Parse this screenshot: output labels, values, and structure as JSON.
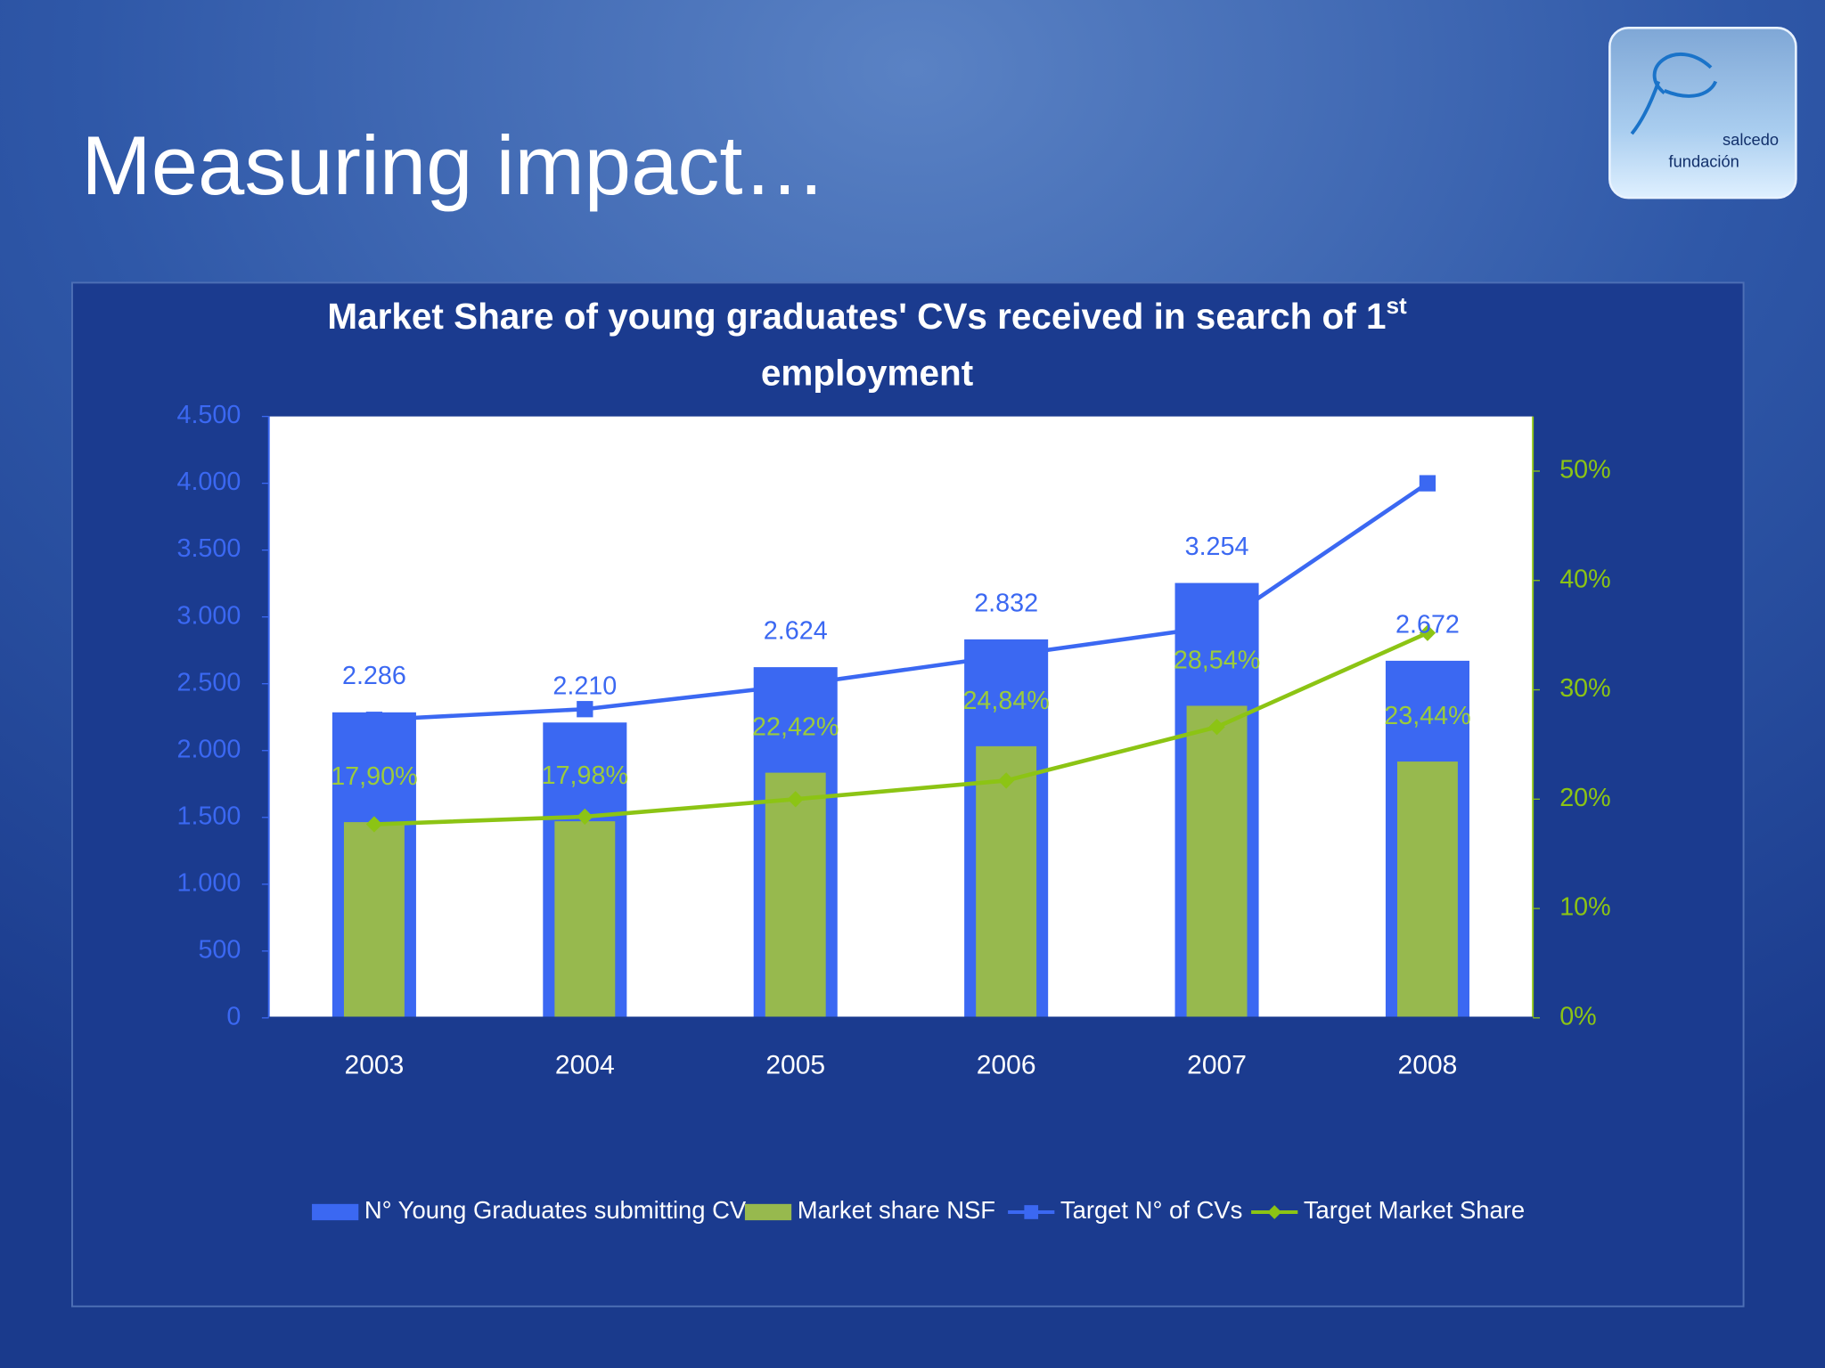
{
  "slide": {
    "title": "Measuring impact…",
    "logo_line1": "salcedo",
    "logo_line2": "fundación"
  },
  "chart_data": {
    "type": "combo",
    "title": "Market Share of young graduates' CVs received in search of 1",
    "title_superscript": "st",
    "title_line2": "employment",
    "categories": [
      "2003",
      "2004",
      "2005",
      "2006",
      "2007",
      "2008"
    ],
    "ylim": [
      0,
      4500
    ],
    "yticks": [
      0,
      500,
      {
        "value": 1000,
        "label": "1.000"
      },
      {
        "value": 1500,
        "label": "1.500"
      },
      {
        "value": 2000,
        "label": "2.000"
      },
      {
        "value": 2500,
        "label": "2.500"
      },
      {
        "value": 3000,
        "label": "3.000"
      },
      {
        "value": 3500,
        "label": "3.500"
      },
      {
        "value": 4000,
        "label": "4.000"
      },
      {
        "value": 4500,
        "label": "4.500"
      }
    ],
    "y2lim": [
      0,
      55
    ],
    "y2ticks": [
      {
        "value": 0,
        "label": "0%"
      },
      {
        "value": 10,
        "label": "10%"
      },
      {
        "value": 20,
        "label": "20%"
      },
      {
        "value": 30,
        "label": "30%"
      },
      {
        "value": 40,
        "label": "40%"
      },
      {
        "value": 50,
        "label": "50%"
      }
    ],
    "legend": "bottom",
    "series": [
      {
        "name": "N° Young Graduates submitting CV",
        "type": "bar",
        "color": "#3b68f2",
        "values": [
          2286,
          2210,
          2624,
          2832,
          3254,
          2672
        ],
        "value_labels": [
          "2.286",
          "2.210",
          "2.624",
          "2.832",
          "3.254",
          "2.672"
        ]
      },
      {
        "name": "Market share NSF",
        "type": "bar",
        "axis": "y2",
        "color": "#97b94e",
        "values": [
          17.9,
          17.98,
          22.42,
          24.84,
          28.54,
          23.44
        ],
        "value_labels": [
          "17,90%",
          "17,98%",
          "22,42%",
          "24,84%",
          "28,54%",
          "23,44%"
        ]
      },
      {
        "name": "Target N° of CVs",
        "type": "line",
        "color": "#3b68f2",
        "marker": "square",
        "values": [
          2230,
          2310,
          2490,
          2710,
          2930,
          4000
        ]
      },
      {
        "name": "Target Market Share",
        "type": "line",
        "axis": "y2",
        "color": "#8cc414",
        "marker": "diamond",
        "values": [
          17.7,
          18.4,
          20.0,
          21.7,
          26.6,
          35.2
        ]
      }
    ]
  }
}
